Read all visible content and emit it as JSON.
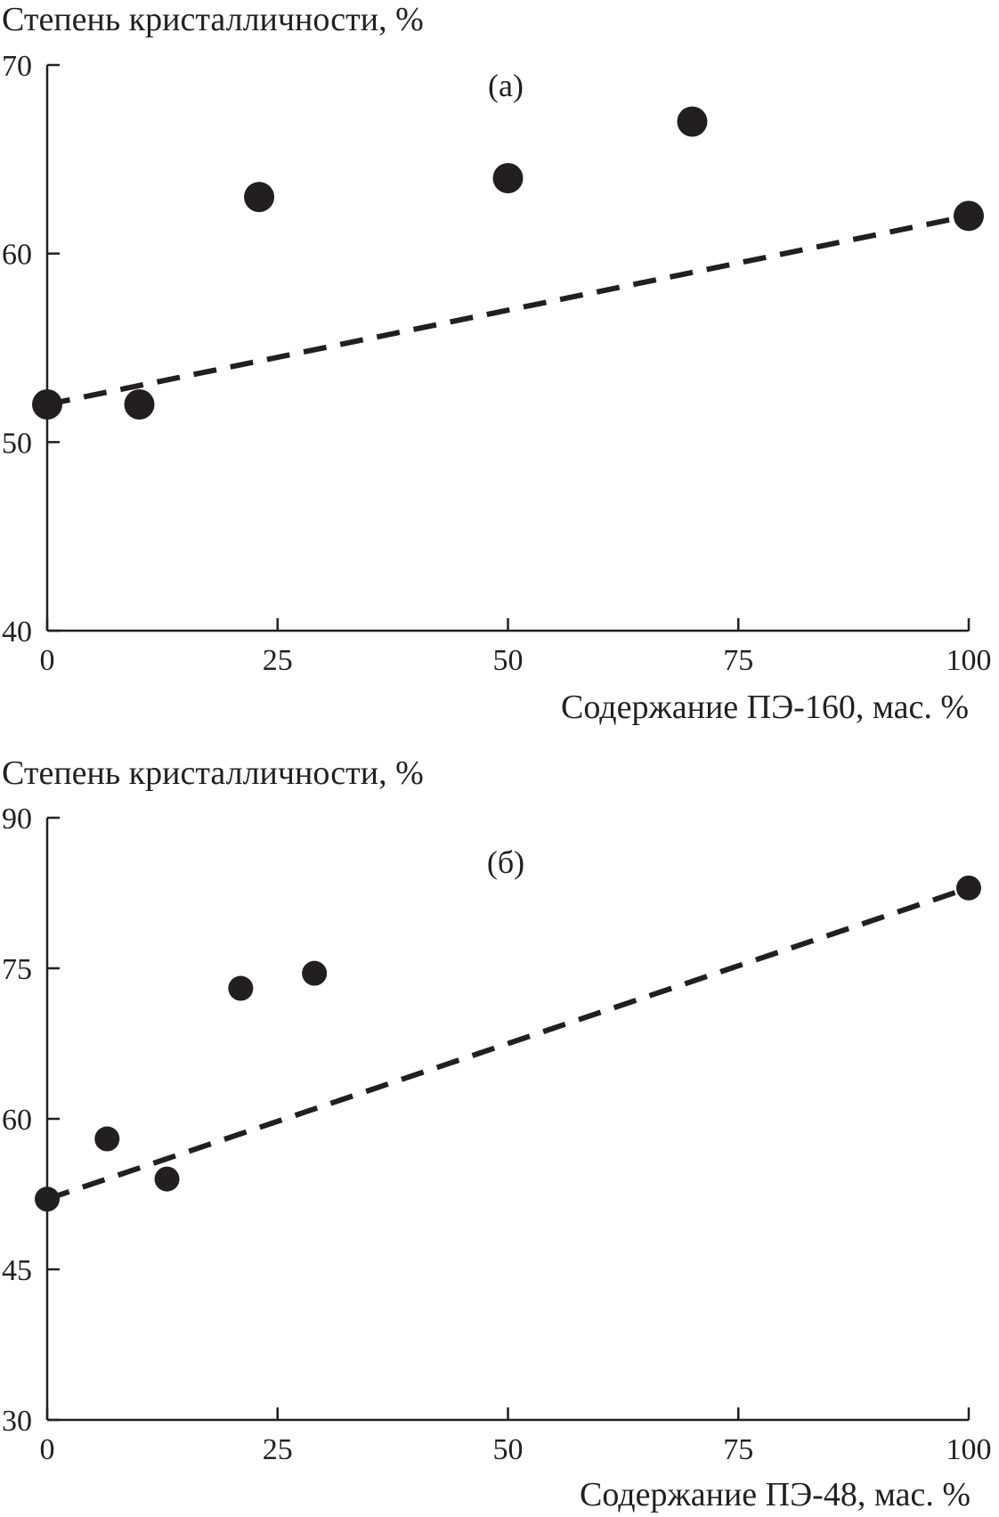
{
  "chart_data": [
    {
      "type": "scatter",
      "panel_label": "(а)",
      "ylabel": "Степень кристалличности, %",
      "xlabel": "Содержание ПЭ-160, мас. %",
      "xlim": [
        0,
        100
      ],
      "ylim": [
        40,
        70
      ],
      "xticks": [
        0,
        25,
        50,
        75,
        100
      ],
      "yticks": [
        40,
        50,
        60,
        70
      ],
      "xtick_labels": [
        "0",
        "25",
        "50",
        "75",
        "100"
      ],
      "ytick_labels": [
        "40",
        "50",
        "60",
        "70"
      ],
      "grid": false,
      "series": [
        {
          "marker": "filled-circle",
          "x": [
            0,
            10,
            23,
            50,
            70,
            100
          ],
          "y": [
            52,
            52,
            63,
            64,
            67,
            62
          ]
        }
      ],
      "trend_line": {
        "style": "dashed",
        "x": [
          0,
          100
        ],
        "y": [
          52,
          62
        ]
      },
      "color": "#231f20"
    },
    {
      "type": "scatter",
      "panel_label": "(б)",
      "ylabel": "Степень кристалличности, %",
      "xlabel": "Содержание ПЭ-48, мас. %",
      "xlim": [
        0,
        100
      ],
      "ylim": [
        30,
        90
      ],
      "xticks": [
        0,
        25,
        50,
        75,
        100
      ],
      "yticks": [
        30,
        45,
        60,
        75,
        90
      ],
      "xtick_labels": [
        "0",
        "25",
        "50",
        "75",
        "100"
      ],
      "ytick_labels": [
        "30",
        "45",
        "60",
        "75",
        "90"
      ],
      "grid": false,
      "series": [
        {
          "marker": "filled-circle",
          "x": [
            0,
            6.5,
            13,
            21,
            29,
            100
          ],
          "y": [
            52,
            58,
            54,
            73,
            74.5,
            83
          ]
        }
      ],
      "trend_line": {
        "style": "dashed",
        "x": [
          0,
          100
        ],
        "y": [
          52,
          83
        ]
      },
      "color": "#231f20"
    }
  ]
}
